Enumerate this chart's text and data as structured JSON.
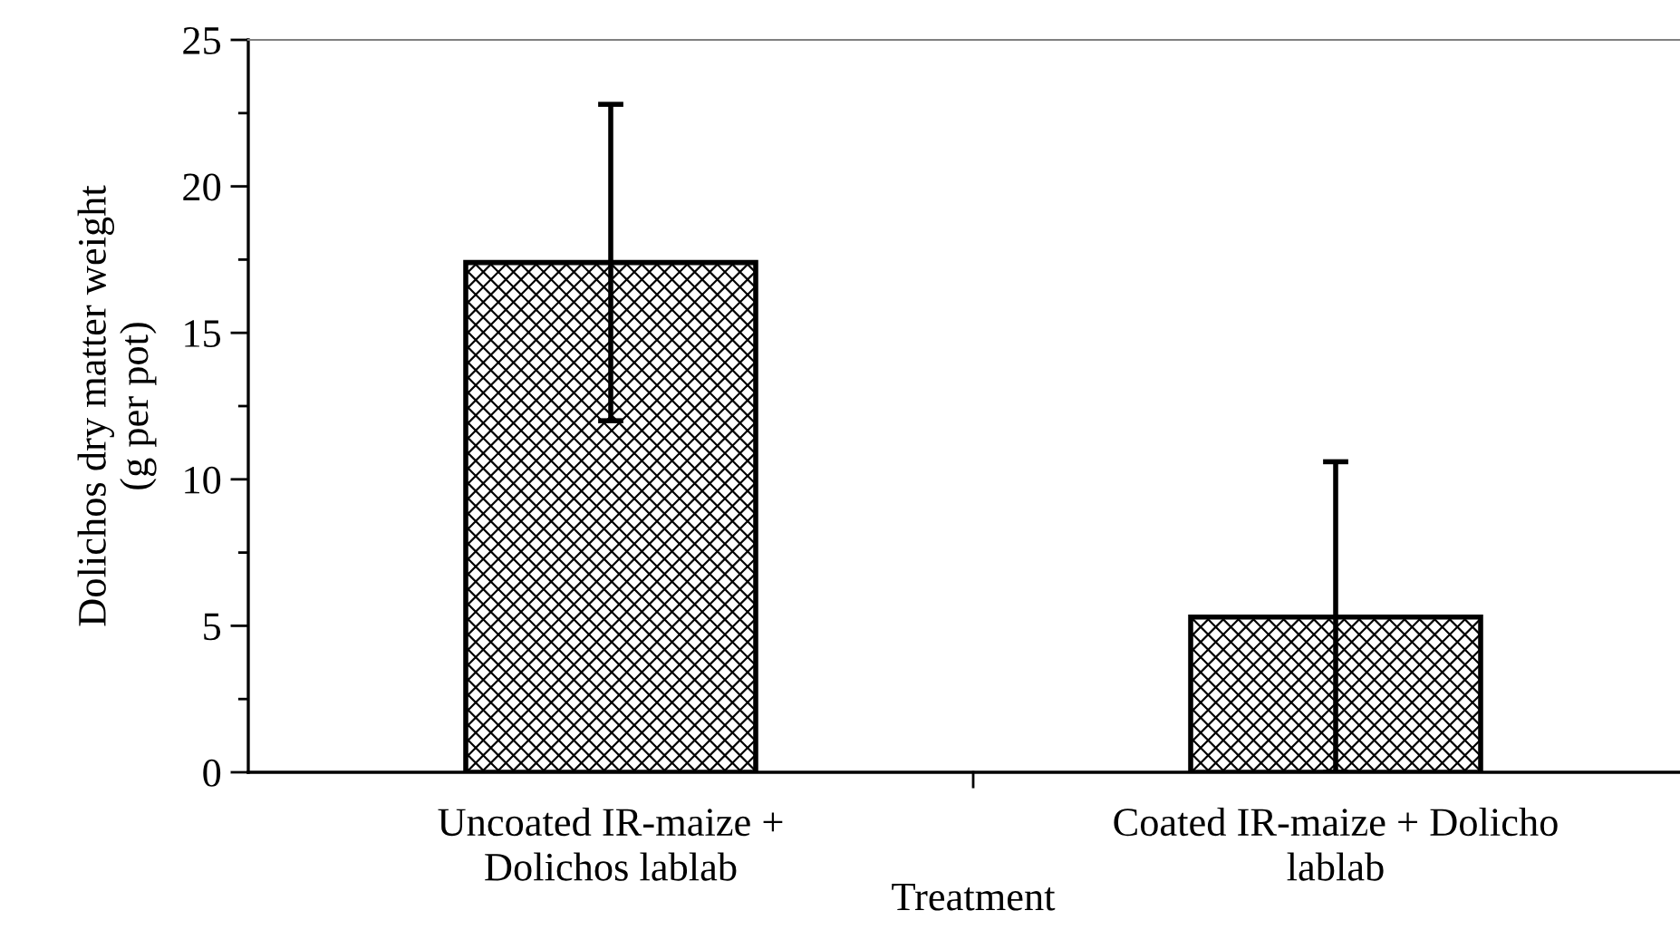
{
  "chart_data": {
    "type": "bar",
    "categories": [
      "Uncoated IR-maize +\nDolichos lablab",
      "Coated IR-maize + Dolicho\nlablab"
    ],
    "values": [
      17.4,
      5.3
    ],
    "errors": [
      5.4,
      5.3
    ],
    "color": "#000000",
    "xlabel": "Treatment",
    "ylabel": "Dolichos dry matter weight\n(g per pot)",
    "ylim": [
      0,
      25
    ],
    "yticks": [
      0,
      5,
      10,
      15,
      20,
      25
    ]
  }
}
